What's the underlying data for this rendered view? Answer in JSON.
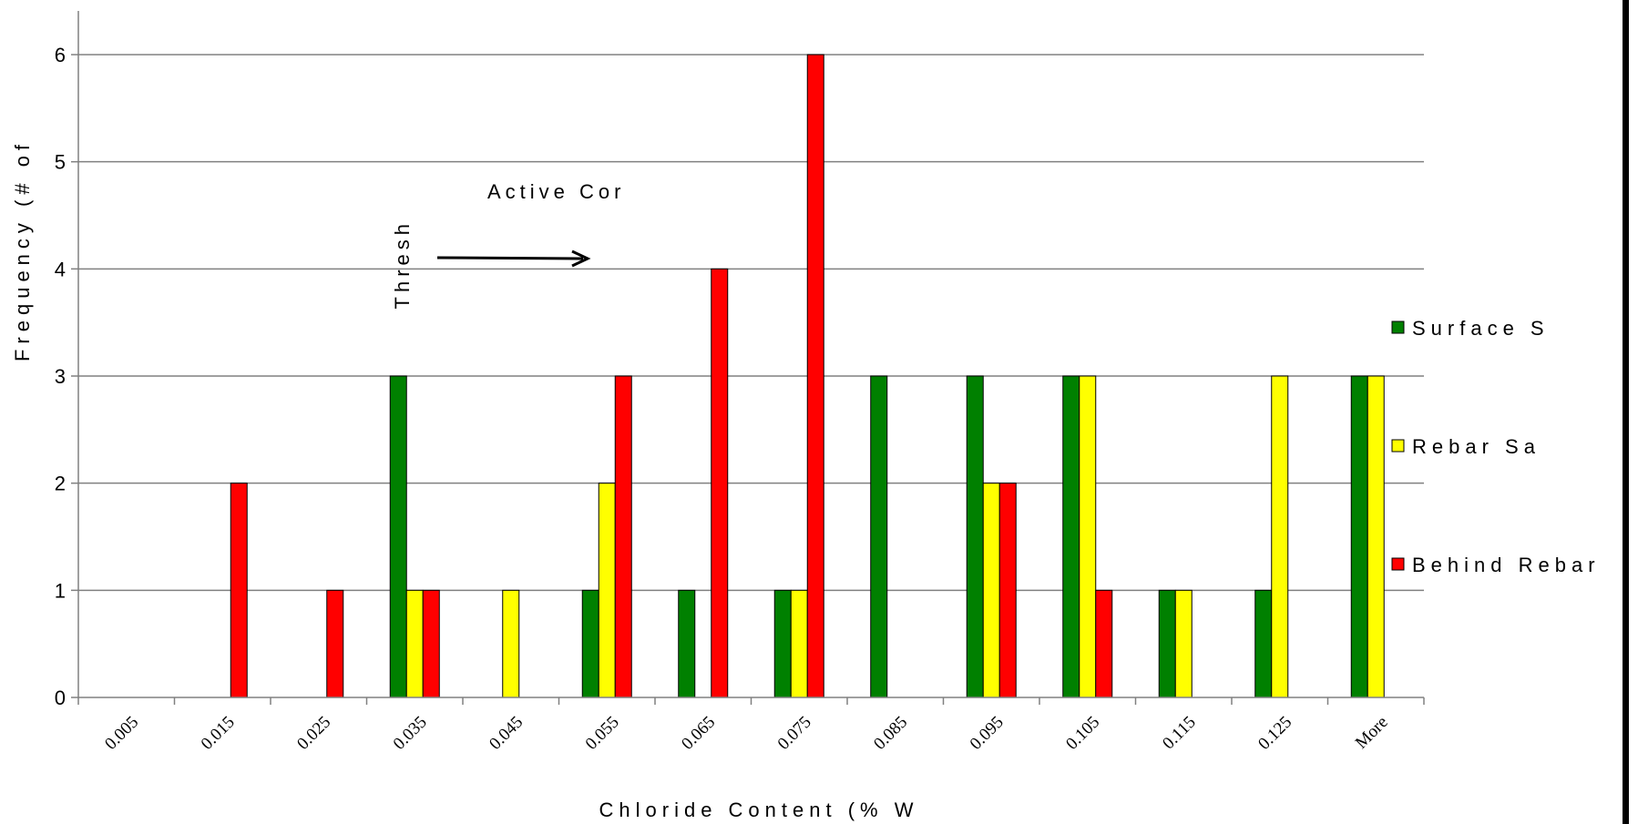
{
  "chart_data": {
    "type": "bar",
    "title": "",
    "xlabel": "Chloride Content (% W",
    "ylabel": "Frequency (# of",
    "ylim": [
      0,
      6
    ],
    "yticks": [
      "0",
      "1",
      "2",
      "3",
      "4",
      "5",
      "6"
    ],
    "grid": true,
    "legend_position": "right",
    "categories": [
      "0.005",
      "0.015",
      "0.025",
      "0.035",
      "0.045",
      "0.055",
      "0.065",
      "0.075",
      "0.085",
      "0.095",
      "0.105",
      "0.115",
      "0.125",
      "More"
    ],
    "series": [
      {
        "name": "Surface S",
        "color": "#008000",
        "values": [
          0,
          0,
          0,
          3,
          0,
          1,
          1,
          1,
          3,
          3,
          3,
          1,
          1,
          3
        ]
      },
      {
        "name": "Rebar Sa",
        "color": "#FFFF00",
        "values": [
          0,
          0,
          0,
          1,
          1,
          2,
          0,
          1,
          0,
          2,
          3,
          1,
          3,
          3
        ]
      },
      {
        "name": "Behind Rebar",
        "color": "#FF0000",
        "values": [
          0,
          2,
          1,
          1,
          0,
          3,
          4,
          6,
          0,
          2,
          1,
          0,
          0,
          0
        ]
      }
    ],
    "annotations": {
      "active_label": "Active Cor",
      "threshold_label": "Thresh"
    }
  }
}
